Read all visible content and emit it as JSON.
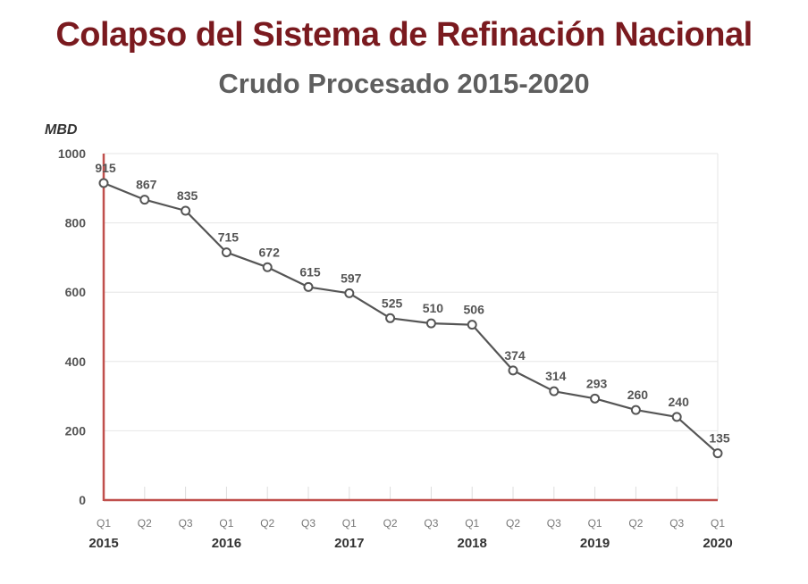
{
  "title": "Colapso del Sistema de Refinación Nacional",
  "subtitle": "Crudo Procesado 2015-2020",
  "colors": {
    "title": "#7a1a1f",
    "subtitle": "#5e5e5e",
    "axis": "#c0504d",
    "line": "#555555",
    "grid": "#e6e6e6"
  },
  "chart_data": {
    "type": "line",
    "title": "Colapso del Sistema de Refinación Nacional",
    "subtitle": "Crudo Procesado 2015-2020",
    "ylabel": "MBD",
    "xlabel": "",
    "ylim": [
      0,
      1000
    ],
    "yticks": [
      0,
      200,
      400,
      600,
      800,
      1000
    ],
    "grid": true,
    "categories": [
      "Q1",
      "Q2",
      "Q3",
      "Q1",
      "Q2",
      "Q3",
      "Q1",
      "Q2",
      "Q3",
      "Q1",
      "Q2",
      "Q3",
      "Q1",
      "Q2",
      "Q3",
      "Q1"
    ],
    "years": [
      {
        "label": "2015",
        "index": 0
      },
      {
        "label": "2016",
        "index": 3
      },
      {
        "label": "2017",
        "index": 6
      },
      {
        "label": "2018",
        "index": 9
      },
      {
        "label": "2019",
        "index": 12
      },
      {
        "label": "2020",
        "index": 15
      }
    ],
    "series": [
      {
        "values": [
          915,
          867,
          835,
          715,
          672,
          615,
          597,
          525,
          510,
          506,
          374,
          314,
          293,
          260,
          240,
          135
        ]
      }
    ]
  }
}
